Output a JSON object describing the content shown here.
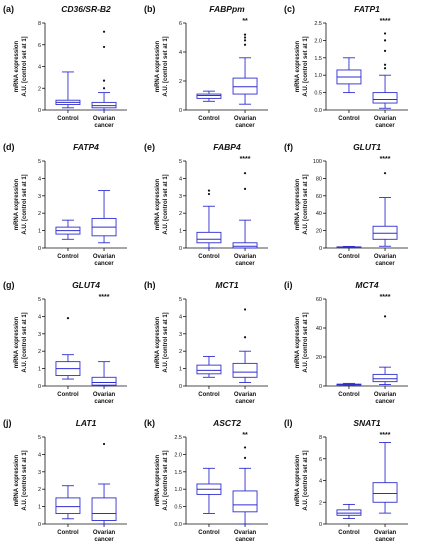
{
  "y_axis_title_line1": "mRNA expression",
  "y_axis_title_line2": "A.U. [control set at 1]",
  "box_color": "#2f2fd0",
  "chart_data": [
    {
      "letter": "(a)",
      "title": "CD36/SR-B2",
      "type": "box",
      "categories": [
        "Control",
        "Ovarian cancer"
      ],
      "ylim": [
        0,
        8
      ],
      "yticks": [
        0,
        2,
        4,
        6,
        8
      ],
      "significance": "",
      "boxes": [
        {
          "min": 0.2,
          "q1": 0.5,
          "median": 0.7,
          "q3": 0.9,
          "max": 3.5,
          "outliers": []
        },
        {
          "min": 0.0,
          "q1": 0.2,
          "median": 0.4,
          "q3": 0.7,
          "max": 1.6,
          "outliers": [
            2.0,
            2.7,
            5.8,
            7.2
          ]
        }
      ]
    },
    {
      "letter": "(b)",
      "title": "FABPpm",
      "type": "box",
      "categories": [
        "Control",
        "Ovarian cancer"
      ],
      "ylim": [
        0,
        6
      ],
      "yticks": [
        0,
        2,
        4,
        6
      ],
      "significance": "**",
      "boxes": [
        {
          "min": 0.6,
          "q1": 0.8,
          "median": 1.0,
          "q3": 1.1,
          "max": 1.3,
          "outliers": []
        },
        {
          "min": 0.4,
          "q1": 1.1,
          "median": 1.6,
          "q3": 2.2,
          "max": 3.6,
          "outliers": [
            4.5,
            4.8,
            5.0,
            5.2
          ]
        }
      ]
    },
    {
      "letter": "(c)",
      "title": "FATP1",
      "type": "box",
      "categories": [
        "Control",
        "Ovarian cancer"
      ],
      "ylim": [
        0,
        2.5
      ],
      "yticks": [
        0.0,
        0.5,
        1.0,
        1.5,
        2.0,
        2.5
      ],
      "significance": "****",
      "boxes": [
        {
          "min": 0.5,
          "q1": 0.75,
          "median": 0.95,
          "q3": 1.15,
          "max": 1.5,
          "outliers": []
        },
        {
          "min": 0.05,
          "q1": 0.2,
          "median": 0.3,
          "q3": 0.5,
          "max": 1.0,
          "outliers": [
            1.2,
            1.3,
            1.7,
            2.0,
            2.2
          ]
        }
      ]
    },
    {
      "letter": "(d)",
      "title": "FATP4",
      "type": "box",
      "categories": [
        "Control",
        "Ovarian cancer"
      ],
      "ylim": [
        0,
        5
      ],
      "yticks": [
        0,
        1,
        2,
        3,
        4,
        5
      ],
      "significance": "",
      "boxes": [
        {
          "min": 0.5,
          "q1": 0.8,
          "median": 1.0,
          "q3": 1.2,
          "max": 1.6,
          "outliers": []
        },
        {
          "min": 0.3,
          "q1": 0.7,
          "median": 1.2,
          "q3": 1.7,
          "max": 3.3,
          "outliers": []
        }
      ]
    },
    {
      "letter": "(e)",
      "title": "FABP4",
      "type": "box",
      "categories": [
        "Control",
        "Ovarian cancer"
      ],
      "ylim": [
        0,
        5
      ],
      "yticks": [
        0,
        1,
        2,
        3,
        4,
        5
      ],
      "significance": "****",
      "boxes": [
        {
          "min": 0.0,
          "q1": 0.3,
          "median": 0.5,
          "q3": 0.9,
          "max": 2.4,
          "outliers": [
            3.1,
            3.3
          ]
        },
        {
          "min": 0.0,
          "q1": 0.0,
          "median": 0.1,
          "q3": 0.3,
          "max": 1.6,
          "outliers": [
            3.4,
            4.3
          ]
        }
      ]
    },
    {
      "letter": "(f)",
      "title": "GLUT1",
      "type": "box",
      "categories": [
        "Control",
        "Ovarian cancer"
      ],
      "ylim": [
        0,
        100
      ],
      "yticks": [
        0,
        20,
        40,
        60,
        80,
        100
      ],
      "significance": "****",
      "boxes": [
        {
          "min": 0.3,
          "q1": 0.7,
          "median": 1.0,
          "q3": 1.3,
          "max": 1.8,
          "outliers": []
        },
        {
          "min": 2,
          "q1": 10,
          "median": 17,
          "q3": 25,
          "max": 58,
          "outliers": [
            86
          ]
        }
      ]
    },
    {
      "letter": "(g)",
      "title": "GLUT4",
      "type": "box",
      "categories": [
        "Control",
        "Ovarian cancer"
      ],
      "ylim": [
        0,
        5
      ],
      "yticks": [
        0,
        1,
        2,
        3,
        4,
        5
      ],
      "significance": "****",
      "boxes": [
        {
          "min": 0.4,
          "q1": 0.6,
          "median": 1.0,
          "q3": 1.4,
          "max": 1.8,
          "outliers": [
            3.9
          ]
        },
        {
          "min": 0.0,
          "q1": 0.05,
          "median": 0.2,
          "q3": 0.5,
          "max": 1.4,
          "outliers": []
        }
      ]
    },
    {
      "letter": "(h)",
      "title": "MCT1",
      "type": "box",
      "categories": [
        "Control",
        "Ovarian cancer"
      ],
      "ylim": [
        0,
        5
      ],
      "yticks": [
        0,
        1,
        2,
        3,
        4,
        5
      ],
      "significance": "",
      "boxes": [
        {
          "min": 0.5,
          "q1": 0.7,
          "median": 0.9,
          "q3": 1.2,
          "max": 1.7,
          "outliers": []
        },
        {
          "min": 0.2,
          "q1": 0.5,
          "median": 0.8,
          "q3": 1.3,
          "max": 2.0,
          "outliers": [
            2.8,
            4.4
          ]
        }
      ]
    },
    {
      "letter": "(i)",
      "title": "MCT4",
      "type": "box",
      "categories": [
        "Control",
        "Ovarian cancer"
      ],
      "ylim": [
        0,
        60
      ],
      "yticks": [
        0,
        20,
        40,
        60
      ],
      "significance": "****",
      "boxes": [
        {
          "min": 0.3,
          "q1": 0.7,
          "median": 1.0,
          "q3": 1.3,
          "max": 1.8,
          "outliers": []
        },
        {
          "min": 1,
          "q1": 3,
          "median": 5,
          "q3": 8,
          "max": 13,
          "outliers": [
            48
          ]
        }
      ]
    },
    {
      "letter": "(j)",
      "title": "LAT1",
      "type": "box",
      "categories": [
        "Control",
        "Ovarian cancer"
      ],
      "ylim": [
        0,
        5
      ],
      "yticks": [
        0,
        1,
        2,
        3,
        4,
        5
      ],
      "significance": "",
      "boxes": [
        {
          "min": 0.3,
          "q1": 0.6,
          "median": 1.0,
          "q3": 1.5,
          "max": 2.2,
          "outliers": []
        },
        {
          "min": 0.0,
          "q1": 0.2,
          "median": 0.6,
          "q3": 1.5,
          "max": 2.3,
          "outliers": [
            4.6
          ]
        }
      ]
    },
    {
      "letter": "(k)",
      "title": "ASCT2",
      "type": "box",
      "categories": [
        "Control",
        "Ovarian cancer"
      ],
      "ylim": [
        0,
        2.5
      ],
      "yticks": [
        0.0,
        0.5,
        1.0,
        1.5,
        2.0,
        2.5
      ],
      "significance": "**",
      "boxes": [
        {
          "min": 0.3,
          "q1": 0.85,
          "median": 1.0,
          "q3": 1.15,
          "max": 1.6,
          "outliers": []
        },
        {
          "min": 0.0,
          "q1": 0.35,
          "median": 0.55,
          "q3": 0.95,
          "max": 1.6,
          "outliers": [
            1.9,
            2.2
          ]
        }
      ]
    },
    {
      "letter": "(l)",
      "title": "SNAT1",
      "type": "box",
      "categories": [
        "Control",
        "Ovarian cancer"
      ],
      "ylim": [
        0,
        8
      ],
      "yticks": [
        0,
        2,
        4,
        6,
        8
      ],
      "significance": "****",
      "boxes": [
        {
          "min": 0.5,
          "q1": 0.8,
          "median": 1.0,
          "q3": 1.3,
          "max": 1.8,
          "outliers": []
        },
        {
          "min": 1.0,
          "q1": 2.0,
          "median": 2.8,
          "q3": 3.8,
          "max": 7.5,
          "outliers": []
        }
      ]
    }
  ]
}
